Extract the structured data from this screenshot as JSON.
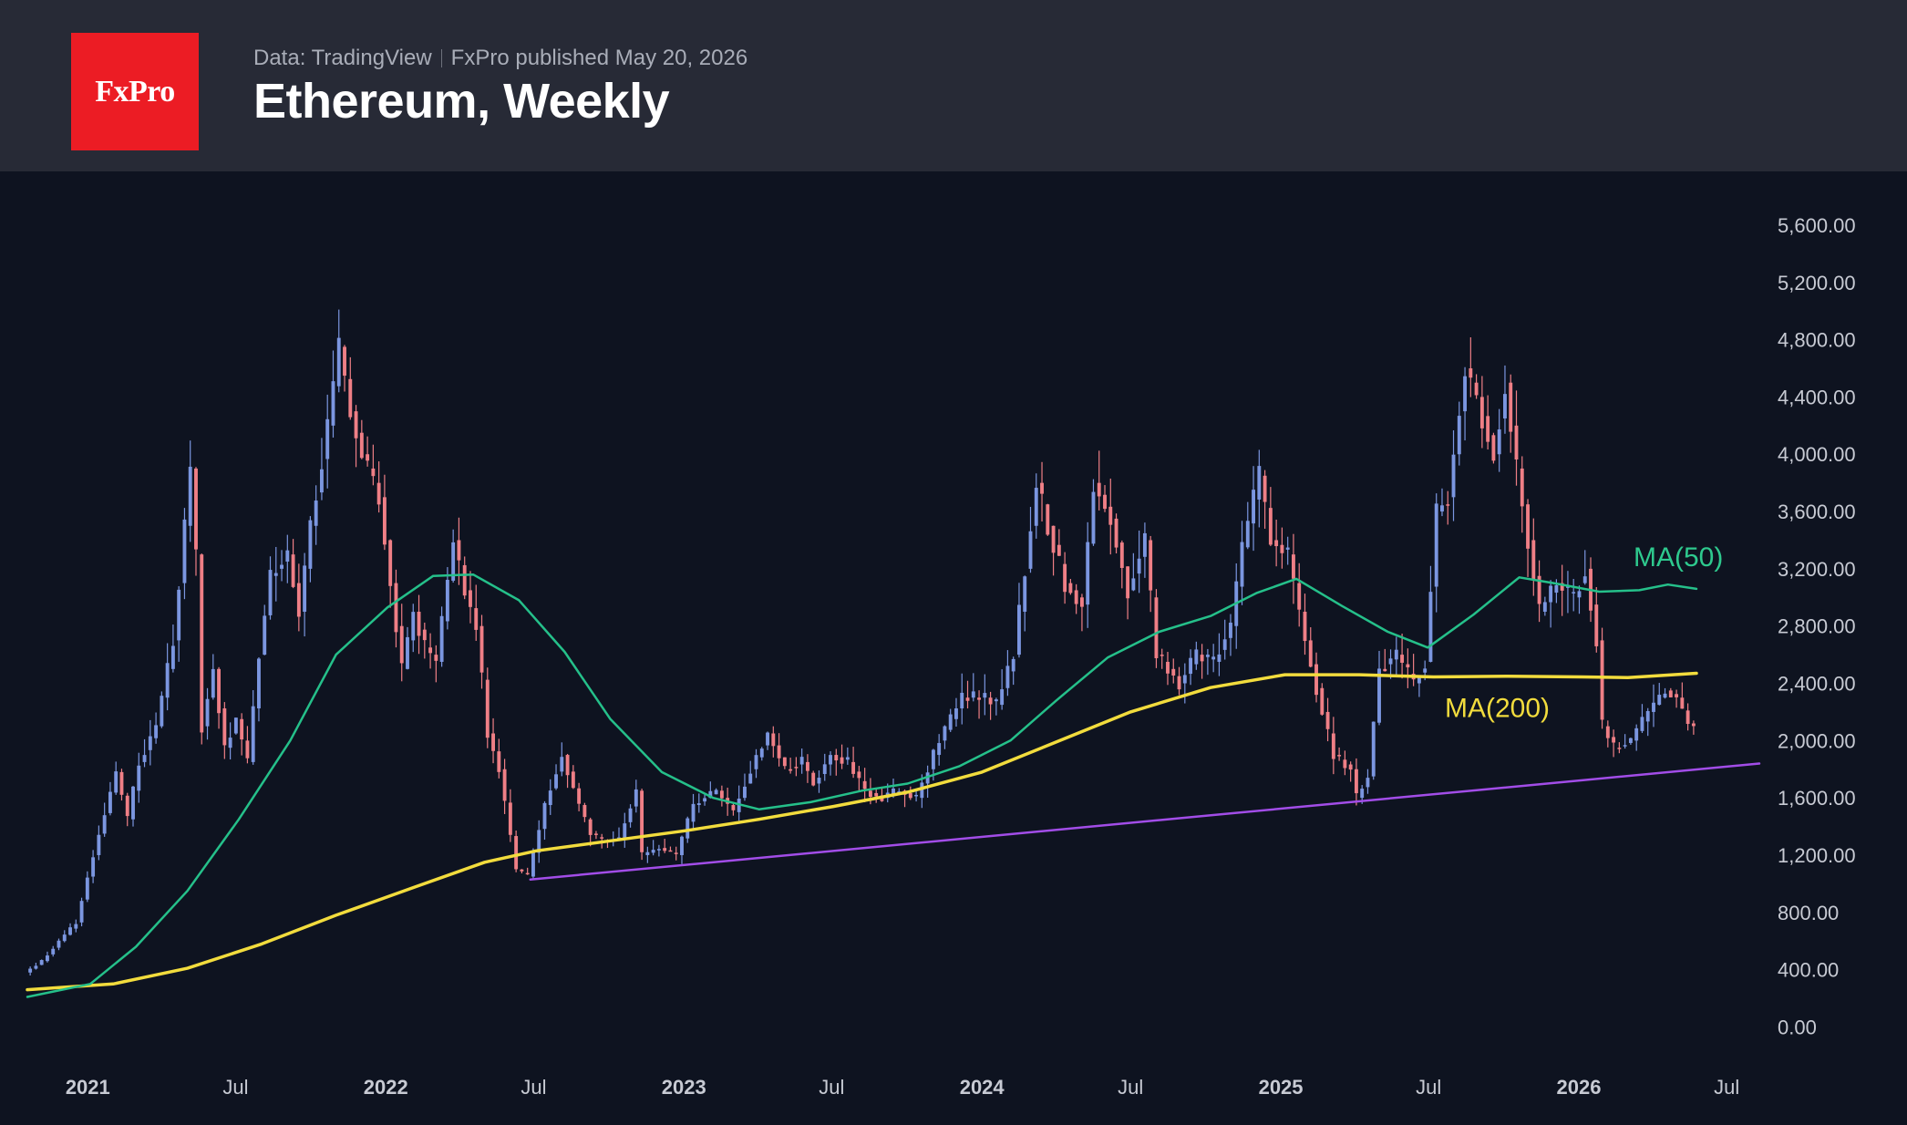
{
  "header": {
    "logo_text": "FxPro",
    "source": "Data: TradingView",
    "published": "FxPro published May 20, 2026",
    "title": "Ethereum, Weekly"
  },
  "colors": {
    "background": "#0e1320",
    "header_bg": "#272a36",
    "logo_bg": "#ec1c24",
    "candle_up": "#7b96e0",
    "candle_down": "#ef7f86",
    "ma50": "#25c08a",
    "ma200": "#f2dc3d",
    "trendline": "#a24de8",
    "ma50_label": "#2ec98e",
    "ma200_label": "#f2dc3d"
  },
  "chart_data": {
    "type": "candlestick",
    "title": "Ethereum, Weekly",
    "y_ticks": [
      "0.00",
      "400.00",
      "800.00",
      "1,200.00",
      "1,600.00",
      "2,000.00",
      "2,400.00",
      "2,800.00",
      "3,200.00",
      "3,600.00",
      "4,000.00",
      "4,400.00",
      "4,800.00",
      "5,200.00",
      "5,600.00"
    ],
    "y_range": [
      -150,
      5950
    ],
    "x_range": [
      "2020-10-19",
      "2026-08-10"
    ],
    "x_ticks": [
      {
        "label": "2021",
        "date": "2021-01-01",
        "year": true
      },
      {
        "label": "Jul",
        "date": "2021-07-01",
        "year": false
      },
      {
        "label": "2022",
        "date": "2022-01-01",
        "year": true
      },
      {
        "label": "Jul",
        "date": "2022-07-01",
        "year": false
      },
      {
        "label": "2023",
        "date": "2023-01-01",
        "year": true
      },
      {
        "label": "Jul",
        "date": "2023-07-01",
        "year": false
      },
      {
        "label": "2024",
        "date": "2024-01-01",
        "year": true
      },
      {
        "label": "Jul",
        "date": "2024-07-01",
        "year": false
      },
      {
        "label": "2025",
        "date": "2025-01-01",
        "year": true
      },
      {
        "label": "Jul",
        "date": "2025-07-01",
        "year": false
      },
      {
        "label": "2026",
        "date": "2026-01-01",
        "year": true
      },
      {
        "label": "Jul",
        "date": "2026-07-01",
        "year": false
      }
    ],
    "price_path": [
      [
        "2020-10-19",
        380
      ],
      [
        "2020-11-09",
        460
      ],
      [
        "2020-11-30",
        600
      ],
      [
        "2020-12-21",
        730
      ],
      [
        "2021-01-04",
        1050
      ],
      [
        "2021-01-18",
        1350
      ],
      [
        "2021-02-08",
        1780
      ],
      [
        "2021-02-22",
        1450
      ],
      [
        "2021-03-08",
        1850
      ],
      [
        "2021-03-29",
        2100
      ],
      [
        "2021-04-19",
        2700
      ],
      [
        "2021-05-10",
        3900
      ],
      [
        "2021-05-17",
        3300
      ],
      [
        "2021-05-24",
        2100
      ],
      [
        "2021-06-07",
        2500
      ],
      [
        "2021-06-21",
        1950
      ],
      [
        "2021-07-05",
        2150
      ],
      [
        "2021-07-19",
        1850
      ],
      [
        "2021-08-02",
        2600
      ],
      [
        "2021-08-16",
        3150
      ],
      [
        "2021-09-06",
        3300
      ],
      [
        "2021-09-20",
        2900
      ],
      [
        "2021-10-04",
        3500
      ],
      [
        "2021-10-25",
        4200
      ],
      [
        "2021-11-08",
        4750
      ],
      [
        "2021-11-22",
        4300
      ],
      [
        "2021-12-06",
        4000
      ],
      [
        "2021-12-27",
        3700
      ],
      [
        "2022-01-10",
        3100
      ],
      [
        "2022-01-24",
        2500
      ],
      [
        "2022-02-07",
        2900
      ],
      [
        "2022-02-21",
        2650
      ],
      [
        "2022-03-07",
        2550
      ],
      [
        "2022-03-28",
        3400
      ],
      [
        "2022-04-11",
        3050
      ],
      [
        "2022-04-25",
        2800
      ],
      [
        "2022-05-09",
        2050
      ],
      [
        "2022-05-23",
        1800
      ],
      [
        "2022-06-13",
        1100
      ],
      [
        "2022-06-27",
        1050
      ],
      [
        "2022-07-18",
        1550
      ],
      [
        "2022-08-08",
        1900
      ],
      [
        "2022-08-29",
        1550
      ],
      [
        "2022-09-12",
        1350
      ],
      [
        "2022-09-26",
        1300
      ],
      [
        "2022-10-17",
        1320
      ],
      [
        "2022-11-07",
        1650
      ],
      [
        "2022-11-14",
        1200
      ],
      [
        "2022-12-05",
        1250
      ],
      [
        "2022-12-26",
        1200
      ],
      [
        "2023-01-16",
        1550
      ],
      [
        "2023-02-13",
        1650
      ],
      [
        "2023-03-06",
        1500
      ],
      [
        "2023-03-27",
        1800
      ],
      [
        "2023-04-17",
        2050
      ],
      [
        "2023-05-08",
        1800
      ],
      [
        "2023-05-29",
        1850
      ],
      [
        "2023-06-12",
        1700
      ],
      [
        "2023-07-03",
        1900
      ],
      [
        "2023-07-24",
        1850
      ],
      [
        "2023-08-14",
        1650
      ],
      [
        "2023-09-04",
        1600
      ],
      [
        "2023-09-25",
        1650
      ],
      [
        "2023-10-16",
        1600
      ],
      [
        "2023-10-30",
        1800
      ],
      [
        "2023-11-13",
        2000
      ],
      [
        "2023-12-11",
        2300
      ],
      [
        "2024-01-08",
        2300
      ],
      [
        "2024-01-22",
        2250
      ],
      [
        "2024-02-12",
        2600
      ],
      [
        "2024-03-04",
        3500
      ],
      [
        "2024-03-11",
        3800
      ],
      [
        "2024-03-25",
        3500
      ],
      [
        "2024-04-15",
        3100
      ],
      [
        "2024-05-06",
        2950
      ],
      [
        "2024-05-20",
        3800
      ],
      [
        "2024-06-10",
        3550
      ],
      [
        "2024-07-01",
        3050
      ],
      [
        "2024-07-22",
        3400
      ],
      [
        "2024-08-05",
        2600
      ],
      [
        "2024-09-02",
        2400
      ],
      [
        "2024-09-23",
        2600
      ],
      [
        "2024-10-14",
        2550
      ],
      [
        "2024-11-04",
        2800
      ],
      [
        "2024-11-18",
        3350
      ],
      [
        "2024-12-09",
        3850
      ],
      [
        "2024-12-23",
        3400
      ],
      [
        "2025-01-13",
        3300
      ],
      [
        "2025-02-03",
        2700
      ],
      [
        "2025-02-24",
        2200
      ],
      [
        "2025-03-10",
        1900
      ],
      [
        "2025-03-31",
        1800
      ],
      [
        "2025-04-07",
        1600
      ],
      [
        "2025-04-21",
        1750
      ],
      [
        "2025-05-05",
        2500
      ],
      [
        "2025-05-26",
        2600
      ],
      [
        "2025-06-16",
        2400
      ],
      [
        "2025-06-30",
        2550
      ],
      [
        "2025-07-14",
        3600
      ],
      [
        "2025-07-28",
        3700
      ],
      [
        "2025-08-18",
        4600
      ],
      [
        "2025-09-01",
        4400
      ],
      [
        "2025-09-22",
        4000
      ],
      [
        "2025-10-06",
        4500
      ],
      [
        "2025-10-20",
        3900
      ],
      [
        "2025-11-03",
        3400
      ],
      [
        "2025-11-17",
        2900
      ],
      [
        "2025-12-08",
        3100
      ],
      [
        "2025-12-29",
        3000
      ],
      [
        "2026-01-12",
        3200
      ],
      [
        "2026-01-26",
        2700
      ],
      [
        "2026-02-02",
        2100
      ],
      [
        "2026-02-16",
        1950
      ],
      [
        "2026-03-09",
        2000
      ],
      [
        "2026-03-30",
        2200
      ],
      [
        "2026-04-20",
        2350
      ],
      [
        "2026-05-04",
        2300
      ],
      [
        "2026-05-18",
        2120
      ]
    ],
    "ma50": [
      [
        "2020-10-19",
        210
      ],
      [
        "2021-01-04",
        300
      ],
      [
        "2021-03-01",
        560
      ],
      [
        "2021-05-03",
        950
      ],
      [
        "2021-07-05",
        1450
      ],
      [
        "2021-09-06",
        2000
      ],
      [
        "2021-11-01",
        2600
      ],
      [
        "2022-01-03",
        2930
      ],
      [
        "2022-02-28",
        3150
      ],
      [
        "2022-04-18",
        3160
      ],
      [
        "2022-06-13",
        2980
      ],
      [
        "2022-08-08",
        2620
      ],
      [
        "2022-10-03",
        2150
      ],
      [
        "2022-12-05",
        1780
      ],
      [
        "2023-02-06",
        1600
      ],
      [
        "2023-04-03",
        1520
      ],
      [
        "2023-06-05",
        1570
      ],
      [
        "2023-08-07",
        1650
      ],
      [
        "2023-10-02",
        1700
      ],
      [
        "2023-12-04",
        1820
      ],
      [
        "2024-02-05",
        2000
      ],
      [
        "2024-04-01",
        2280
      ],
      [
        "2024-06-03",
        2580
      ],
      [
        "2024-08-05",
        2760
      ],
      [
        "2024-10-07",
        2870
      ],
      [
        "2024-12-02",
        3030
      ],
      [
        "2025-01-20",
        3130
      ],
      [
        "2025-03-17",
        2940
      ],
      [
        "2025-05-12",
        2760
      ],
      [
        "2025-06-30",
        2650
      ],
      [
        "2025-08-25",
        2880
      ],
      [
        "2025-10-20",
        3140
      ],
      [
        "2025-12-01",
        3100
      ],
      [
        "2026-01-26",
        3040
      ],
      [
        "2026-03-16",
        3050
      ],
      [
        "2026-04-20",
        3090
      ],
      [
        "2026-05-25",
        3060
      ]
    ],
    "ma200": [
      [
        "2020-10-19",
        260
      ],
      [
        "2021-02-01",
        300
      ],
      [
        "2021-05-03",
        410
      ],
      [
        "2021-08-02",
        580
      ],
      [
        "2021-11-01",
        780
      ],
      [
        "2022-02-07",
        980
      ],
      [
        "2022-05-02",
        1150
      ],
      [
        "2022-07-04",
        1230
      ],
      [
        "2022-10-03",
        1300
      ],
      [
        "2023-01-02",
        1370
      ],
      [
        "2023-04-03",
        1450
      ],
      [
        "2023-07-03",
        1540
      ],
      [
        "2023-10-02",
        1640
      ],
      [
        "2024-01-01",
        1780
      ],
      [
        "2024-04-01",
        1990
      ],
      [
        "2024-07-01",
        2200
      ],
      [
        "2024-10-07",
        2370
      ],
      [
        "2025-01-06",
        2460
      ],
      [
        "2025-04-07",
        2460
      ],
      [
        "2025-07-07",
        2445
      ],
      [
        "2025-10-06",
        2450
      ],
      [
        "2026-01-05",
        2445
      ],
      [
        "2026-03-02",
        2440
      ],
      [
        "2026-05-25",
        2470
      ]
    ],
    "trendline": {
      "start": [
        "2022-06-27",
        1030
      ],
      "end": [
        "2026-08-10",
        1840
      ]
    },
    "annotations": [
      {
        "text": "MA(50)",
        "series": "ma50"
      },
      {
        "text": "MA(200)",
        "series": "ma200"
      }
    ]
  }
}
